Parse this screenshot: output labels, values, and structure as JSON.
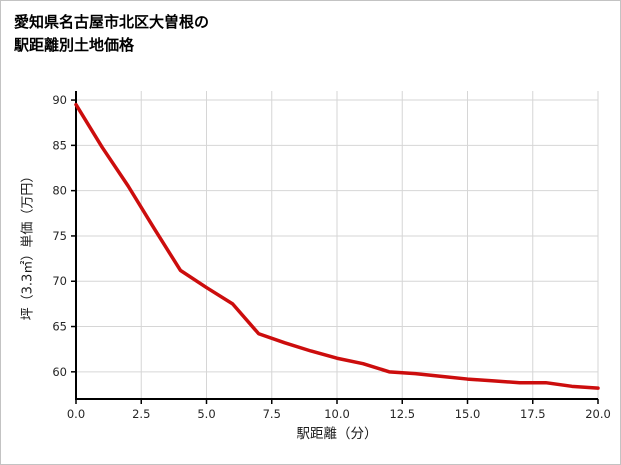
{
  "page": {
    "title_line1": "愛知県名古屋市北区大曽根の",
    "title_line2": "駅距離別土地価格"
  },
  "chart_data": {
    "type": "line",
    "title": "愛知県名古屋市北区大曽根の駅距離別土地価格",
    "xlabel": "駅距離（分）",
    "ylabel": "坪（3.3㎡）単価（万円）",
    "x": [
      0,
      1,
      2,
      3,
      4,
      5,
      6,
      7,
      8,
      9,
      10,
      11,
      12,
      13,
      14,
      15,
      16,
      17,
      18,
      19,
      20
    ],
    "y": [
      89.5,
      84.8,
      80.5,
      75.8,
      71.2,
      69.3,
      67.5,
      64.2,
      63.2,
      62.3,
      61.5,
      60.9,
      60.0,
      59.8,
      59.5,
      59.2,
      59.0,
      58.8,
      58.8,
      58.4,
      58.2
    ],
    "xlim": [
      0,
      20
    ],
    "ylim": [
      57,
      91
    ],
    "x_ticks": [
      0,
      2.5,
      5,
      7.5,
      10,
      12.5,
      15,
      17.5,
      20
    ],
    "x_tick_labels": [
      "0.0",
      "2.5",
      "5.0",
      "7.5",
      "10.0",
      "12.5",
      "15.0",
      "17.5",
      "20.0"
    ],
    "y_ticks": [
      60,
      65,
      70,
      75,
      80,
      85,
      90
    ],
    "y_tick_labels": [
      "60",
      "65",
      "70",
      "75",
      "80",
      "85",
      "90"
    ],
    "grid": true,
    "legend": "none",
    "line_color": "#cc0d0d",
    "grid_color": "#d6d6d6",
    "axis_color": "#000000",
    "tick_label_color": "#262626"
  }
}
